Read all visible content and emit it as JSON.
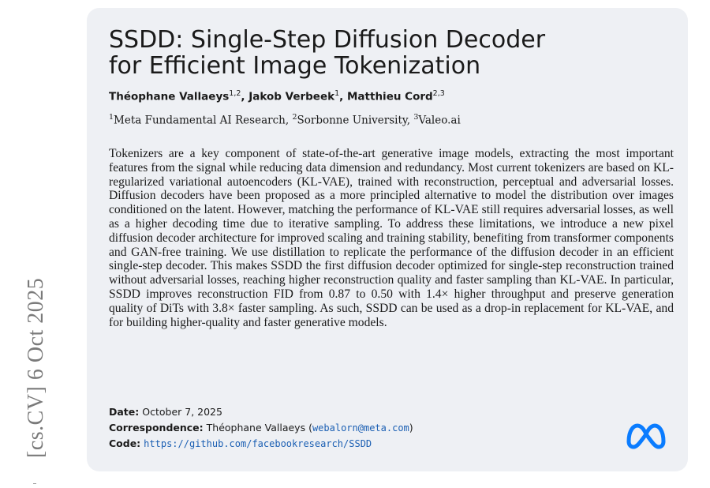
{
  "side_stamp": "[cs.CV]  6 Oct 2025",
  "title_line1": "SSDD: Single-Step Diffusion Decoder",
  "title_line2": "for Efficient Image Tokenization",
  "authors": [
    {
      "name": "Théophane Vallaeys",
      "sup": "1,2",
      "sep": ", "
    },
    {
      "name": "Jakob Verbeek",
      "sup": "1",
      "sep": ", "
    },
    {
      "name": "Matthieu Cord",
      "sup": "2,3",
      "sep": ""
    }
  ],
  "affiliations": [
    {
      "sup": "1",
      "name": "Meta Fundamental AI Research",
      "sep": ", "
    },
    {
      "sup": "2",
      "name": "Sorbonne University",
      "sep": ", "
    },
    {
      "sup": "3",
      "name": "Valeo.ai",
      "sep": ""
    }
  ],
  "abstract": "Tokenizers are a key component of state-of-the-art generative image models, extracting the most important features from the signal while reducing data dimension and redundancy. Most current tokenizers are based on KL-regularized variational autoencoders (KL-VAE), trained with reconstruction, perceptual and adversarial losses. Diffusion decoders have been proposed as a more principled alternative to model the distribution over images conditioned on the latent. However, matching the performance of KL-VAE still requires adversarial losses, as well as a higher decoding time due to iterative sampling. To address these limitations, we introduce a new pixel diffusion decoder architecture for improved scaling and training stability, benefiting from transformer components and GAN-free training. We use distillation to replicate the performance of the diffusion decoder in an efficient single-step decoder. This makes SSDD the first diffusion decoder optimized for single-step reconstruction trained without adversarial losses, reaching higher reconstruction quality and faster sampling than KL-VAE. In particular, SSDD improves reconstruction FID from 0.87 to 0.50 with 1.4× higher throughput and preserve generation quality of DiTs with 3.8× faster sampling. As such, SSDD can be used as a drop-in replacement for KL-VAE, and for building higher-quality and faster generative models.",
  "date_label": "Date:",
  "date_value": "October 7, 2025",
  "corr_label": "Correspondence:",
  "corr_name": "Théophane Vallaeys",
  "corr_email": "webalorn@meta.com",
  "code_label": "Code:",
  "code_url": "https://github.com/facebookresearch/SSDD",
  "logo_icon": "meta-logo-icon",
  "colors": {
    "link": "#1b5fb3",
    "logo": "#0a7cff",
    "card": "#eef0f4"
  }
}
